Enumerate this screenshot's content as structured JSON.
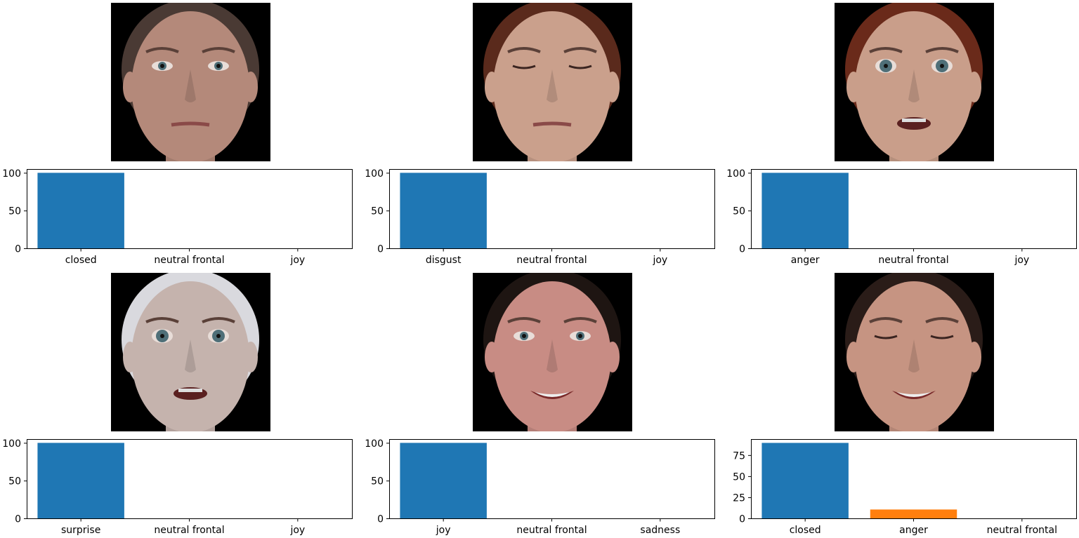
{
  "colors": {
    "bar_primary": "#1f77b4",
    "bar_secondary": "#ff7f0e",
    "axis": "#000000",
    "photo_bg": "#000000"
  },
  "panels": [
    {
      "face": {
        "skin": "#b4897a",
        "hair": "#4a3a34",
        "eyes": "open",
        "mouth": "neutral"
      }
    },
    {
      "face": {
        "skin": "#caa08c",
        "hair": "#5a2a1c",
        "eyes": "closed",
        "mouth": "neutral"
      }
    },
    {
      "face": {
        "skin": "#c99e8a",
        "hair": "#6a2a1a",
        "eyes": "wide",
        "mouth": "open"
      }
    },
    {
      "face": {
        "skin": "#c5b3ad",
        "hair": "#d9d9de",
        "eyes": "wide",
        "mouth": "open"
      }
    },
    {
      "face": {
        "skin": "#c88c84",
        "hair": "#1e1512",
        "eyes": "open",
        "mouth": "smile"
      }
    },
    {
      "face": {
        "skin": "#c69482",
        "hair": "#2a1c18",
        "eyes": "closed",
        "mouth": "smile"
      }
    }
  ],
  "chart_data": [
    {
      "type": "bar",
      "categories": [
        "closed",
        "neutral frontal",
        "joy"
      ],
      "values": [
        100,
        0,
        0
      ],
      "ylim": [
        0,
        105
      ],
      "yticks": [
        0,
        50,
        100
      ],
      "bar_colors": [
        "#1f77b4",
        "#1f77b4",
        "#1f77b4"
      ]
    },
    {
      "type": "bar",
      "categories": [
        "disgust",
        "neutral frontal",
        "joy"
      ],
      "values": [
        100,
        0,
        0
      ],
      "ylim": [
        0,
        105
      ],
      "yticks": [
        0,
        50,
        100
      ],
      "bar_colors": [
        "#1f77b4",
        "#1f77b4",
        "#1f77b4"
      ]
    },
    {
      "type": "bar",
      "categories": [
        "anger",
        "neutral frontal",
        "joy"
      ],
      "values": [
        100,
        0,
        0
      ],
      "ylim": [
        0,
        105
      ],
      "yticks": [
        0,
        50,
        100
      ],
      "bar_colors": [
        "#1f77b4",
        "#1f77b4",
        "#1f77b4"
      ]
    },
    {
      "type": "bar",
      "categories": [
        "surprise",
        "neutral frontal",
        "joy"
      ],
      "values": [
        100,
        0,
        0
      ],
      "ylim": [
        0,
        105
      ],
      "yticks": [
        0,
        50,
        100
      ],
      "bar_colors": [
        "#1f77b4",
        "#1f77b4",
        "#1f77b4"
      ]
    },
    {
      "type": "bar",
      "categories": [
        "joy",
        "neutral frontal",
        "sadness"
      ],
      "values": [
        100,
        0,
        0
      ],
      "ylim": [
        0,
        105
      ],
      "yticks": [
        0,
        50,
        100
      ],
      "bar_colors": [
        "#1f77b4",
        "#1f77b4",
        "#1f77b4"
      ]
    },
    {
      "type": "bar",
      "categories": [
        "closed",
        "anger",
        "neutral frontal"
      ],
      "values": [
        89.5,
        10.5,
        0
      ],
      "ylim": [
        0,
        94
      ],
      "yticks": [
        0,
        25,
        50,
        75
      ],
      "bar_colors": [
        "#1f77b4",
        "#ff7f0e",
        "#1f77b4"
      ]
    }
  ]
}
